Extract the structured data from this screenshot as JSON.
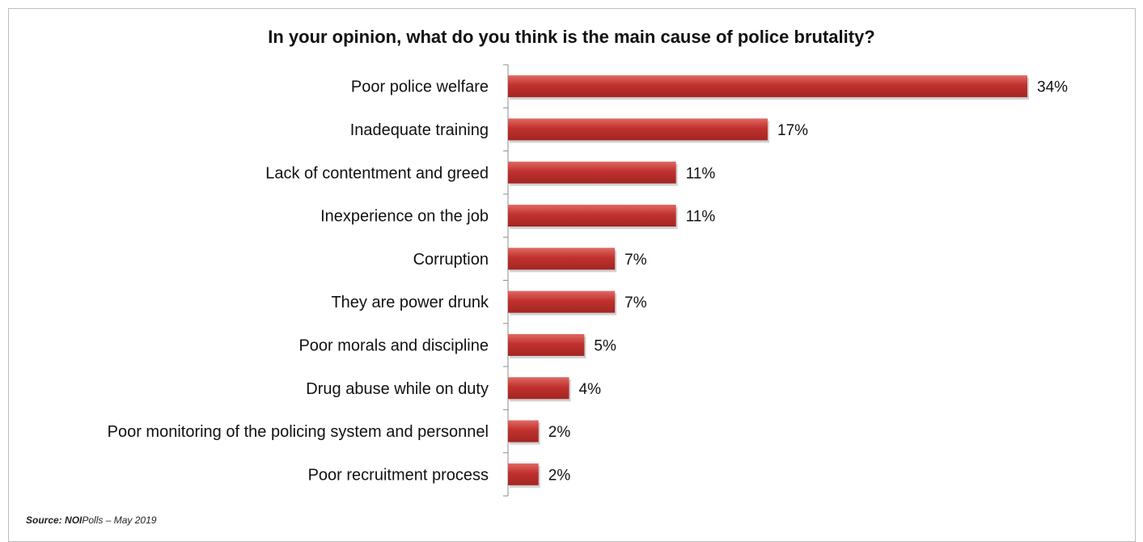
{
  "chart_data": {
    "type": "bar",
    "orientation": "horizontal",
    "title": "In your opinion, what do you think is the main cause of police brutality?",
    "categories": [
      "Poor police welfare",
      "Inadequate training",
      "Lack of contentment and greed",
      "Inexperience on the job",
      "Corruption",
      "They are power drunk",
      "Poor morals and discipline",
      "Drug abuse while on duty",
      "Poor monitoring of the policing system and personnel",
      "Poor recruitment process"
    ],
    "values": [
      34,
      17,
      11,
      11,
      7,
      7,
      5,
      4,
      2,
      2
    ],
    "value_labels": [
      "34%",
      "17%",
      "11%",
      "11%",
      "7%",
      "7%",
      "5%",
      "4%",
      "2%",
      "2%"
    ],
    "xlim": [
      0,
      34
    ],
    "grid": false,
    "legend": "none",
    "bar_color": "#c0312e"
  },
  "source": {
    "prefix": "Source:",
    "org_bold": "NOI",
    "org_rest": "Polls",
    "date": " – May  2019"
  }
}
